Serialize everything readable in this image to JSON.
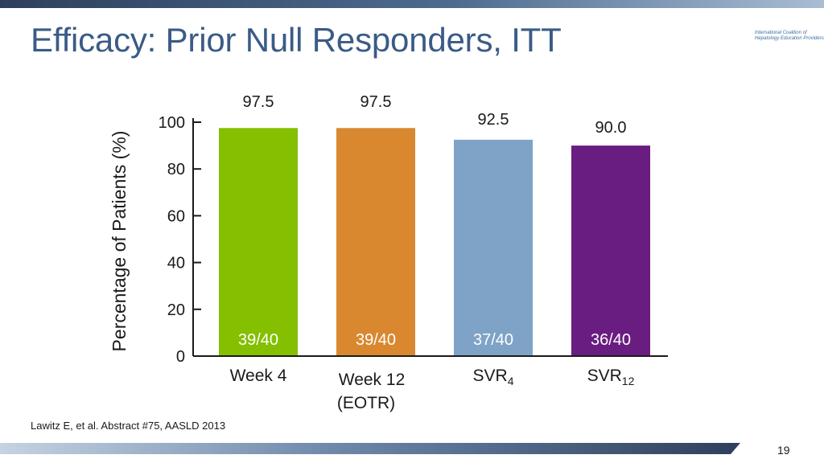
{
  "slide": {
    "title": "Efficacy: Prior Null Responders, ITT",
    "logo_line1": "International Coalition of",
    "logo_line2": "Hepatology Education Providers",
    "footnote": "Lawitz E, et al. Abstract #75, AASLD 2013",
    "page_number": "19"
  },
  "colors": {
    "accent": "#3b5b86",
    "bar_week4": "#84bf00",
    "bar_week12": "#d98830",
    "bar_svr4": "#7ea3c7",
    "bar_svr12": "#6a1d80"
  },
  "chart_data": {
    "type": "bar",
    "ylabel": "Percentage of Patients (%)",
    "ylim": [
      0,
      100
    ],
    "yticks": [
      0,
      20,
      40,
      60,
      80,
      100
    ],
    "grid": false,
    "legend": "none",
    "categories": [
      {
        "main": "Week 4",
        "sub": "",
        "line2": ""
      },
      {
        "main": "Week 12",
        "sub": "",
        "line2": "(EOTR)"
      },
      {
        "main": "SVR",
        "sub": "4",
        "line2": ""
      },
      {
        "main": "SVR",
        "sub": "12",
        "line2": ""
      }
    ],
    "values": [
      97.5,
      97.5,
      92.5,
      90.0
    ],
    "value_labels": [
      "97.5",
      "97.5",
      "92.5",
      "90.0"
    ],
    "inner_labels": [
      "39/40",
      "39/40",
      "37/40",
      "36/40"
    ],
    "bar_colors": [
      "#84bf00",
      "#d98830",
      "#7ea3c7",
      "#6a1d80"
    ]
  }
}
